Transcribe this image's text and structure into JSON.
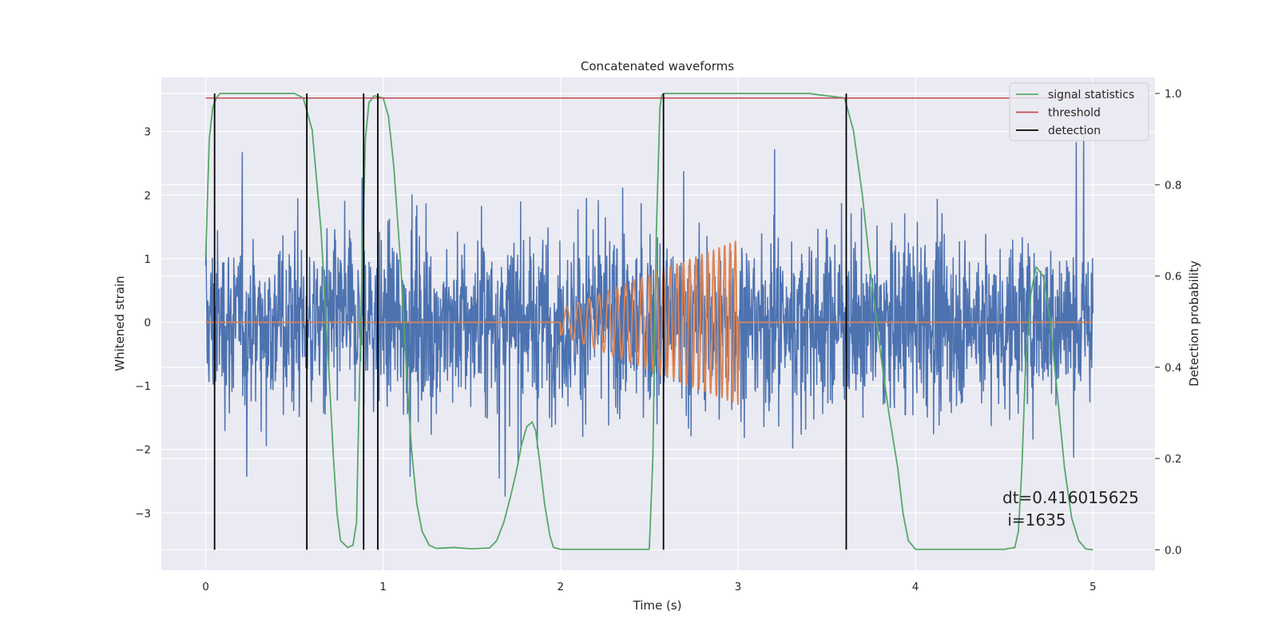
{
  "chart_data": {
    "type": "line",
    "title": "Concatenated waveforms",
    "xlabel": "Time (s)",
    "ylabel": "Whitened strain",
    "y2label": "Detection probability",
    "xlim": [
      -0.25,
      5.35
    ],
    "ylim": [
      -3.9,
      3.85
    ],
    "y2lim": [
      -0.045,
      1.035
    ],
    "xticks": [
      0,
      1,
      2,
      3,
      4,
      5
    ],
    "xtick_labels": [
      "0",
      "1",
      "2",
      "3",
      "4",
      "5"
    ],
    "yticks": [
      -3,
      -2,
      -1,
      0,
      1,
      2,
      3
    ],
    "ytick_labels": [
      "−3",
      "−2",
      "−1",
      "0",
      "1",
      "2",
      "3"
    ],
    "y2ticks": [
      0.0,
      0.2,
      0.4,
      0.6,
      0.8,
      1.0
    ],
    "y2tick_labels": [
      "0.0",
      "0.2",
      "0.4",
      "0.6",
      "0.8",
      "1.0"
    ],
    "grid": true,
    "background": "#eaeaf2",
    "legend": {
      "placement": "top-right",
      "entries": [
        {
          "label": "signal statistics",
          "color": "#55a868"
        },
        {
          "label": "threshold",
          "color": "#c44e52"
        },
        {
          "label": "detection",
          "color": "#000000"
        }
      ]
    },
    "annotation": {
      "line1": "dt=0.416015625",
      "line2": " i=1635",
      "x": 4.52,
      "y": -2.75
    },
    "series": [
      {
        "role": "noisy strain",
        "color": "#4c72b0",
        "x_range": [
          0,
          5
        ],
        "noise_amplitude_approx": 3.3
      },
      {
        "role": "injected chirp",
        "color": "#dd8452",
        "x_range": [
          0,
          5
        ],
        "chirp_start": 2.0,
        "chirp_end": 3.0,
        "start_amplitude": 0.2,
        "end_amplitude": 1.3
      },
      {
        "name": "signal statistics",
        "axis": "right",
        "color": "#55a868",
        "x": [
          0.0,
          0.02,
          0.04,
          0.06,
          0.08,
          0.1,
          0.15,
          0.3,
          0.5,
          0.55,
          0.6,
          0.65,
          0.7,
          0.72,
          0.74,
          0.76,
          0.8,
          0.83,
          0.85,
          0.86,
          0.88,
          0.9,
          0.92,
          0.95,
          1.0,
          1.03,
          1.06,
          1.1,
          1.13,
          1.16,
          1.19,
          1.22,
          1.26,
          1.3,
          1.4,
          1.5,
          1.6,
          1.64,
          1.68,
          1.72,
          1.75,
          1.78,
          1.81,
          1.84,
          1.86,
          1.88,
          1.91,
          1.94,
          1.96,
          2.0,
          2.2,
          2.4,
          2.5,
          2.52,
          2.54,
          2.56,
          2.57,
          2.58,
          2.6,
          2.7,
          3.0,
          3.4,
          3.6,
          3.65,
          3.7,
          3.75,
          3.8,
          3.85,
          3.9,
          3.93,
          3.96,
          4.0,
          4.3,
          4.5,
          4.56,
          4.58,
          4.6,
          4.62,
          4.65,
          4.68,
          4.72,
          4.76,
          4.8,
          4.84,
          4.88,
          4.92,
          4.96,
          5.0
        ],
        "y": [
          0.64,
          0.9,
          0.97,
          0.99,
          1.0,
          1.0,
          1.0,
          1.0,
          1.0,
          0.99,
          0.92,
          0.7,
          0.35,
          0.2,
          0.08,
          0.02,
          0.005,
          0.01,
          0.06,
          0.25,
          0.6,
          0.9,
          0.98,
          0.995,
          0.99,
          0.95,
          0.84,
          0.62,
          0.4,
          0.22,
          0.1,
          0.04,
          0.01,
          0.003,
          0.005,
          0.002,
          0.004,
          0.02,
          0.06,
          0.12,
          0.17,
          0.23,
          0.27,
          0.28,
          0.26,
          0.2,
          0.1,
          0.03,
          0.005,
          0.001,
          0.001,
          0.001,
          0.001,
          0.2,
          0.7,
          0.97,
          0.995,
          1.0,
          1.0,
          1.0,
          1.0,
          1.0,
          0.99,
          0.92,
          0.78,
          0.6,
          0.44,
          0.3,
          0.18,
          0.08,
          0.02,
          0.001,
          0.001,
          0.001,
          0.005,
          0.04,
          0.18,
          0.4,
          0.56,
          0.62,
          0.6,
          0.5,
          0.34,
          0.18,
          0.07,
          0.02,
          0.002,
          0.0
        ]
      },
      {
        "name": "threshold",
        "axis": "right",
        "color": "#c44e52",
        "x": [
          0,
          5
        ],
        "y": [
          0.99,
          0.99
        ]
      },
      {
        "name": "detection",
        "axis": "right",
        "color": "#000000",
        "vertical_lines_x": [
          0.05,
          0.57,
          0.89,
          0.97,
          2.58,
          3.61
        ],
        "y_span": [
          0.0,
          1.0
        ]
      }
    ]
  }
}
